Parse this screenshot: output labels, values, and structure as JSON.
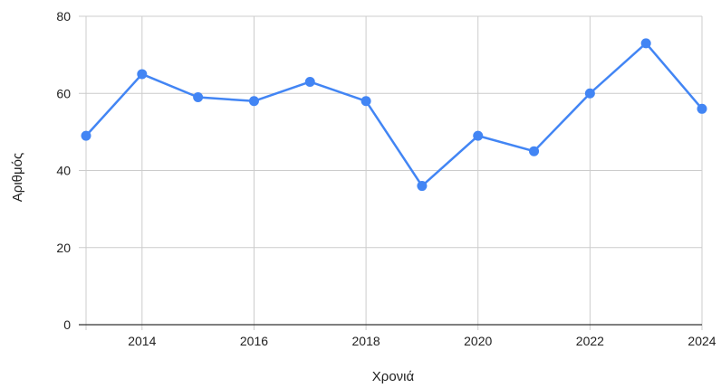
{
  "chart_data": {
    "type": "line",
    "title": "",
    "xlabel": "Χρονιά",
    "ylabel": "Αριθμός",
    "x": [
      2013,
      2014,
      2015,
      2016,
      2017,
      2018,
      2019,
      2020,
      2021,
      2022,
      2023,
      2024
    ],
    "series": [
      {
        "name": "",
        "values": [
          49,
          65,
          59,
          58,
          63,
          58,
          36,
          49,
          45,
          60,
          73,
          56
        ]
      }
    ],
    "xlim": [
      2013,
      2024
    ],
    "ylim": [
      0,
      80
    ],
    "xticks": [
      2014,
      2016,
      2018,
      2020,
      2022,
      2024
    ],
    "yticks": [
      0,
      20,
      40,
      60,
      80
    ],
    "grid": true,
    "legend": "none",
    "colors": {
      "line": "#4285f4",
      "grid": "#cccccc",
      "axis": "#333333"
    }
  }
}
